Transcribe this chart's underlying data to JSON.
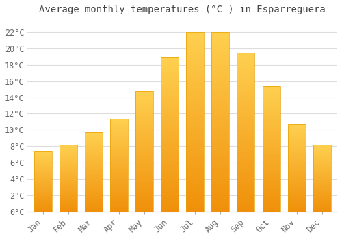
{
  "title": "Average monthly temperatures (°C ) in Esparreguera",
  "months": [
    "Jan",
    "Feb",
    "Mar",
    "Apr",
    "May",
    "Jun",
    "Jul",
    "Aug",
    "Sep",
    "Oct",
    "Nov",
    "Dec"
  ],
  "values": [
    7.4,
    8.2,
    9.7,
    11.4,
    14.8,
    18.9,
    22.0,
    22.0,
    19.5,
    15.4,
    10.7,
    8.2
  ],
  "bar_color_top": "#FFD050",
  "bar_color_bottom": "#F0900A",
  "bar_edge_color": "#E8A000",
  "background_color": "#FFFFFF",
  "grid_color": "#DDDDDD",
  "ytick_labels": [
    "0°C",
    "2°C",
    "4°C",
    "6°C",
    "8°C",
    "10°C",
    "12°C",
    "14°C",
    "16°C",
    "18°C",
    "20°C",
    "22°C"
  ],
  "ytick_values": [
    0,
    2,
    4,
    6,
    8,
    10,
    12,
    14,
    16,
    18,
    20,
    22
  ],
  "ylim": [
    0,
    23.5
  ],
  "title_fontsize": 10,
  "tick_fontsize": 8.5,
  "title_color": "#444444",
  "tick_color": "#666666"
}
